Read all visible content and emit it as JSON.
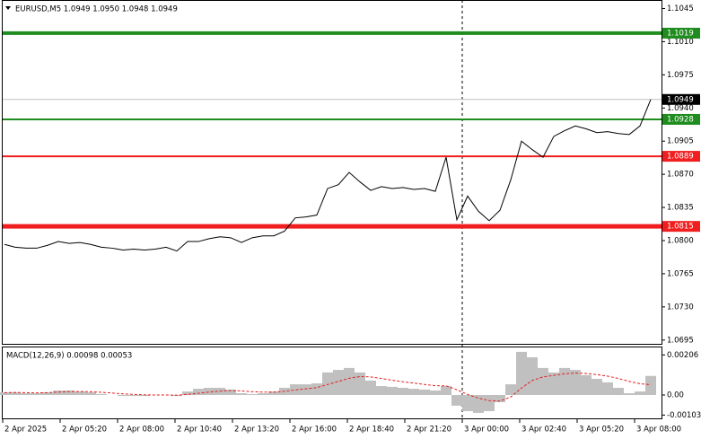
{
  "chart_data": [
    {
      "type": "line",
      "title": "EURUSD,M5  1.0949 1.0950 1.0948 1.0949",
      "color": "#000000",
      "values": [
        1.0796,
        1.0793,
        1.0792,
        1.0792,
        1.0795,
        1.0799,
        1.0797,
        1.0798,
        1.0796,
        1.0793,
        1.0792,
        1.079,
        1.0791,
        1.079,
        1.0791,
        1.0793,
        1.0789,
        1.0799,
        1.0799,
        1.0802,
        1.0804,
        1.0803,
        1.0798,
        1.0803,
        1.0805,
        1.0805,
        1.081,
        1.0824,
        1.0825,
        1.0827,
        1.0855,
        1.0859,
        1.0872,
        1.0862,
        1.0853,
        1.0857,
        1.0855,
        1.0856,
        1.0854,
        1.0855,
        1.0852,
        1.0888,
        1.0822,
        1.0847,
        1.0831,
        1.0821,
        1.0832,
        1.0864,
        1.0905,
        1.0896,
        1.0888,
        1.091,
        1.0916,
        1.0921,
        1.0918,
        1.0914,
        1.0915,
        1.0913,
        1.0912,
        1.0921,
        1.0949
      ],
      "ylim": [
        1.0691,
        1.1054
      ],
      "yticks": [
        1.1045,
        {
          "value": 1.101,
          "label": "1.1010"
        },
        1.0975,
        {
          "value": 1.094,
          "label": "1.0940"
        },
        1.0905,
        {
          "value": 1.087,
          "label": "1.0870"
        },
        1.0835,
        {
          "value": 1.08,
          "label": "1.0800"
        },
        1.0765,
        {
          "value": 1.073,
          "label": "1.0730"
        },
        1.0695
      ],
      "current_price": 1.0949,
      "levels": [
        {
          "value": 1.1019,
          "color": "#1e8c1e",
          "width": 4
        },
        {
          "value": 1.0928,
          "color": "#1e8c1e",
          "width": 2
        },
        {
          "value": 1.0889,
          "color": "#f01e1e",
          "width": 2
        },
        {
          "value": 1.0815,
          "color": "#f01e1e",
          "width": 5
        }
      ],
      "xlabels": [
        "2 Apr 2025",
        "2 Apr 05:20",
        "2 Apr 08:00",
        "2 Apr 10:40",
        "2 Apr 13:20",
        "2 Apr 16:00",
        "2 Apr 18:40",
        "2 Apr 21:20",
        "3 Apr 00:00",
        "3 Apr 02:40",
        "3 Apr 05:20",
        "3 Apr 08:00"
      ]
    },
    {
      "type": "macd",
      "title": "MACD(12,26,9) 0.00098 0.00053",
      "series": [
        {
          "color": "#c0c0c0",
          "values": [
            0.00014,
            0.00014,
            9e-05,
            9e-05,
            0.00014,
            0.00023,
            0.00023,
            0.00018,
            0.00014,
            5e-05,
            0,
            -5e-05,
            -5e-05,
            -5e-05,
            0,
            0,
            -5e-05,
            0.00018,
            0.00032,
            0.00037,
            0.00037,
            0.00028,
            9e-05,
            5e-05,
            9e-05,
            0.00018,
            0.00037,
            0.00055,
            0.00055,
            0.0006,
            0.00116,
            0.00129,
            0.00139,
            0.00116,
            0.00074,
            0.00046,
            0.00042,
            0.00037,
            0.00032,
            0.00028,
            0.00023,
            0.00046,
            -0.00055,
            -0.00083,
            -0.00092,
            -0.00083,
            -0.00037,
            0.00055,
            0.00222,
            0.00194,
            0.00139,
            0.00116,
            0.00139,
            0.00129,
            0.00102,
            0.00083,
            0.00065,
            0.00037,
            9e-05,
            0.00018,
            0.00098
          ]
        },
        {
          "color": "#e61e1e",
          "values": [
            0.00012,
            0.00013,
            0.00012,
            0.00011,
            0.00012,
            0.00015,
            0.00018,
            0.00018,
            0.00017,
            0.00014,
            0.0001,
            6e-05,
            3e-05,
            1e-05,
            0,
            0,
            -1e-05,
            3e-05,
            9e-05,
            0.00015,
            0.0002,
            0.00023,
            0.00021,
            0.00017,
            0.00015,
            0.00015,
            0.00019,
            0.00026,
            0.00032,
            0.00038,
            0.00054,
            0.0007,
            0.00086,
            0.00095,
            0.00093,
            0.00085,
            0.00076,
            0.00068,
            0.00061,
            0.00054,
            0.00048,
            0.00047,
            0.00027,
            3e-05,
            -0.00016,
            -0.00029,
            -0.00031,
            -0.0001,
            0.00036,
            0.00075,
            0.00093,
            0.00101,
            0.00109,
            0.00113,
            0.00111,
            0.00105,
            0.00097,
            0.00085,
            0.0007,
            0.00058,
            0.00053
          ]
        }
      ],
      "ylim": [
        -0.0012,
        0.0024
      ],
      "yticks": [
        0.00206,
        {
          "value": 0,
          "label": "0.00"
        },
        -0.00103
      ]
    }
  ]
}
